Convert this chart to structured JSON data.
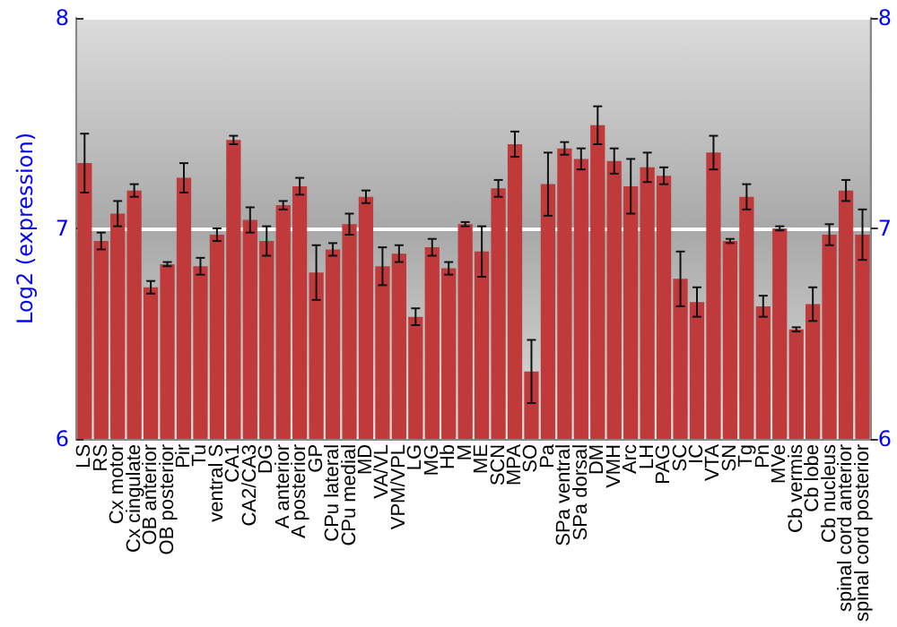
{
  "chart_data": {
    "type": "bar",
    "ylabel": "Log2 (expression)",
    "categories": [
      "LS",
      "RS",
      "Cx motor",
      "Cx cingulate",
      "OB anterior",
      "OB posterior",
      "Pir",
      "Tu",
      "ventral S",
      "CA1",
      "CA2/CA3",
      "DG",
      "A anterior",
      "A posterior",
      "GP",
      "CPu lateral",
      "CPu medial",
      "MD",
      "VA/VL",
      "VPM/VPL",
      "LG",
      "MG",
      "Hb",
      "M",
      "ME",
      "SCN",
      "MPA",
      "SO",
      "Pa",
      "SPa ventral",
      "SPa dorsal",
      "DM",
      "VMH",
      "Arc",
      "LH",
      "PAG",
      "SC",
      "IC",
      "VTA",
      "SN",
      "Tg",
      "Pn",
      "MVe",
      "Cb vermis",
      "Cb lobe",
      "Cb nucleus",
      "spinal cord anterior",
      "spinal cord posterior"
    ],
    "series": [
      {
        "color": "#c0393b",
        "values": [
          7.31,
          6.94,
          7.07,
          7.18,
          6.72,
          6.83,
          7.24,
          6.82,
          6.97,
          7.42,
          7.04,
          6.94,
          7.11,
          7.2,
          6.79,
          6.9,
          7.02,
          7.15,
          6.82,
          6.88,
          6.58,
          6.91,
          6.81,
          7.02,
          6.89,
          7.19,
          7.4,
          6.32,
          7.21,
          7.38,
          7.33,
          7.49,
          7.32,
          7.2,
          7.29,
          7.25,
          6.76,
          6.65,
          7.36,
          6.94,
          7.15,
          6.63,
          7.0,
          6.52,
          6.64,
          6.97,
          7.18,
          6.97
        ],
        "errors": [
          0.14,
          0.04,
          0.06,
          0.03,
          0.03,
          0.01,
          0.07,
          0.04,
          0.03,
          0.02,
          0.06,
          0.07,
          0.02,
          0.04,
          0.13,
          0.03,
          0.05,
          0.03,
          0.09,
          0.04,
          0.04,
          0.04,
          0.03,
          0.01,
          0.12,
          0.04,
          0.06,
          0.15,
          0.15,
          0.03,
          0.05,
          0.09,
          0.06,
          0.13,
          0.07,
          0.04,
          0.13,
          0.07,
          0.08,
          0.01,
          0.06,
          0.05,
          0.01,
          0.01,
          0.08,
          0.05,
          0.05,
          0.12
        ]
      }
    ],
    "ylim": [
      6,
      8
    ],
    "yticks": [
      6,
      7,
      8
    ],
    "y2lim": [
      6,
      8
    ],
    "y2ticks": [
      6,
      7,
      8
    ],
    "grid": "y"
  }
}
